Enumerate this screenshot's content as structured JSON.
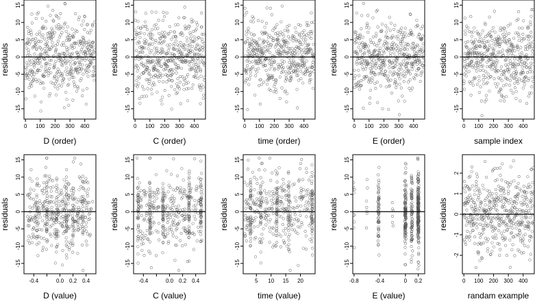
{
  "chart_data": [
    {
      "type": "scatter",
      "xlabel": "D (order)",
      "ylabel": "residuals",
      "xlim": [
        -10,
        475
      ],
      "ylim": [
        -18,
        16.5
      ],
      "xticks": [
        0,
        100,
        200,
        300,
        400
      ],
      "yticks": [
        -15,
        -10,
        -5,
        0,
        5,
        10,
        15
      ],
      "ref_line_y": 0,
      "points": {
        "kind": "index",
        "n": 470,
        "seed": 11,
        "sd": 5.5,
        "clip": [
          -17,
          15.5
        ]
      }
    },
    {
      "type": "scatter",
      "xlabel": "C (order)",
      "ylabel": "residuals",
      "xlim": [
        -10,
        475
      ],
      "ylim": [
        -18,
        16.5
      ],
      "xticks": [
        0,
        100,
        200,
        300,
        400
      ],
      "yticks": [
        -15,
        -10,
        -5,
        0,
        5,
        10,
        15
      ],
      "ref_line_y": 0,
      "points": {
        "kind": "index",
        "n": 470,
        "seed": 12,
        "sd": 5.5,
        "clip": [
          -17,
          15.5
        ]
      }
    },
    {
      "type": "scatter",
      "xlabel": "time (order)",
      "ylabel": "residuals",
      "xlim": [
        -10,
        475
      ],
      "ylim": [
        -18,
        16.5
      ],
      "xticks": [
        0,
        100,
        200,
        300,
        400
      ],
      "yticks": [
        -15,
        -10,
        -5,
        0,
        5,
        10,
        15
      ],
      "ref_line_y": 0,
      "points": {
        "kind": "index",
        "n": 470,
        "seed": 13,
        "sd": 5.5,
        "clip": [
          -17,
          15.5
        ]
      }
    },
    {
      "type": "scatter",
      "xlabel": "E (order)",
      "ylabel": "residuals",
      "xlim": [
        -10,
        475
      ],
      "ylim": [
        -18,
        16.5
      ],
      "xticks": [
        0,
        100,
        200,
        300,
        400
      ],
      "yticks": [
        -15,
        -10,
        -5,
        0,
        5,
        10,
        15
      ],
      "ref_line_y": 0,
      "points": {
        "kind": "index",
        "n": 470,
        "seed": 14,
        "sd": 5.5,
        "clip": [
          -17,
          15.5
        ]
      }
    },
    {
      "type": "scatter",
      "xlabel": "sample index",
      "ylabel": "residuals",
      "xlim": [
        -10,
        475
      ],
      "ylim": [
        -18,
        16.5
      ],
      "xticks": [
        0,
        100,
        200,
        300,
        400
      ],
      "yticks": [
        -15,
        -10,
        -5,
        0,
        5,
        10,
        15
      ],
      "ref_line_y": 0,
      "points": {
        "kind": "index",
        "n": 470,
        "seed": 15,
        "sd": 5.5,
        "clip": [
          -17,
          15.5
        ]
      }
    },
    {
      "type": "scatter",
      "xlabel": "D (value)",
      "ylabel": "residuals",
      "xlim": [
        -0.55,
        0.55
      ],
      "ylim": [
        -18,
        16.5
      ],
      "xticks": [
        -0.4,
        -0.2,
        0.0,
        0.2,
        0.4
      ],
      "xtick_labels": [
        "-0.4",
        "",
        "0.0",
        "0.2",
        "0.4"
      ],
      "yticks": [
        -15,
        -10,
        -5,
        0,
        5,
        10,
        15
      ],
      "ref_line_y": 0,
      "points": {
        "kind": "uniform",
        "n": 470,
        "seed": 21,
        "sd": 5.5,
        "clip": [
          -17,
          15.5
        ],
        "range": [
          -0.5,
          0.5
        ],
        "clusters": [
          -0.35,
          -0.2,
          -0.05,
          0.1,
          0.2,
          0.35
        ],
        "cluster_share": 0.3
      }
    },
    {
      "type": "scatter",
      "xlabel": "C (value)",
      "ylabel": "residuals",
      "xlim": [
        -0.55,
        0.55
      ],
      "ylim": [
        -18,
        16.5
      ],
      "xticks": [
        -0.4,
        -0.2,
        0.0,
        0.2,
        0.4
      ],
      "xtick_labels": [
        "-0.4",
        "",
        "0.0",
        "0.2",
        "0.4"
      ],
      "yticks": [
        -15,
        -10,
        -5,
        0,
        5,
        10,
        15
      ],
      "ref_line_y": 0,
      "points": {
        "kind": "uniform",
        "n": 470,
        "seed": 22,
        "sd": 5.5,
        "clip": [
          -17,
          15.5
        ],
        "range": [
          -0.5,
          0.5
        ],
        "clusters": [
          -0.48,
          -0.3,
          -0.1,
          0.3,
          0.48
        ],
        "cluster_share": 0.45
      }
    },
    {
      "type": "scatter",
      "xlabel": "time (value)",
      "ylabel": "residuals",
      "xlim": [
        0.5,
        25
      ],
      "ylim": [
        -18,
        16.5
      ],
      "xticks": [
        5,
        10,
        15,
        20
      ],
      "yticks": [
        -15,
        -10,
        -5,
        0,
        5,
        10,
        15
      ],
      "ref_line_y": 0,
      "points": {
        "kind": "uniform",
        "n": 470,
        "seed": 23,
        "sd": 5.5,
        "clip": [
          -17,
          15.5
        ],
        "range": [
          1,
          24.5
        ],
        "clusters": [
          3,
          6.5,
          12,
          16,
          24
        ],
        "cluster_share": 0.35
      }
    },
    {
      "type": "scatter",
      "xlabel": "E (value)",
      "ylabel": "residuals",
      "xlim": [
        -0.82,
        0.3
      ],
      "ylim": [
        -18,
        16.5
      ],
      "xticks": [
        -0.8,
        -0.4,
        0.0,
        0.2
      ],
      "yticks": [
        -15,
        -10,
        -5,
        0,
        5,
        10,
        15
      ],
      "ref_line_y": 0,
      "points": {
        "kind": "clusters",
        "n": 470,
        "seed": 24,
        "sd": 5.5,
        "clip": [
          -17,
          15.5
        ],
        "clusters": [
          [
            -0.8,
            0.02
          ],
          [
            -0.6,
            0.02
          ],
          [
            -0.42,
            0.1
          ],
          [
            -0.2,
            0.02
          ],
          [
            0.0,
            0.3
          ],
          [
            0.1,
            0.15
          ],
          [
            0.2,
            0.4
          ]
        ]
      }
    },
    {
      "type": "scatter",
      "xlabel": "randam example",
      "ylabel": "residuals",
      "xlim": [
        -10,
        475
      ],
      "ylim": [
        -2.9,
        2.9
      ],
      "xticks": [
        0,
        100,
        200,
        300,
        400
      ],
      "yticks": [
        -2,
        -1,
        0,
        1,
        2
      ],
      "ref_line_y": 0,
      "points": {
        "kind": "index",
        "n": 470,
        "seed": 25,
        "sd": 1.0,
        "clip": [
          -2.6,
          2.6
        ]
      }
    }
  ]
}
